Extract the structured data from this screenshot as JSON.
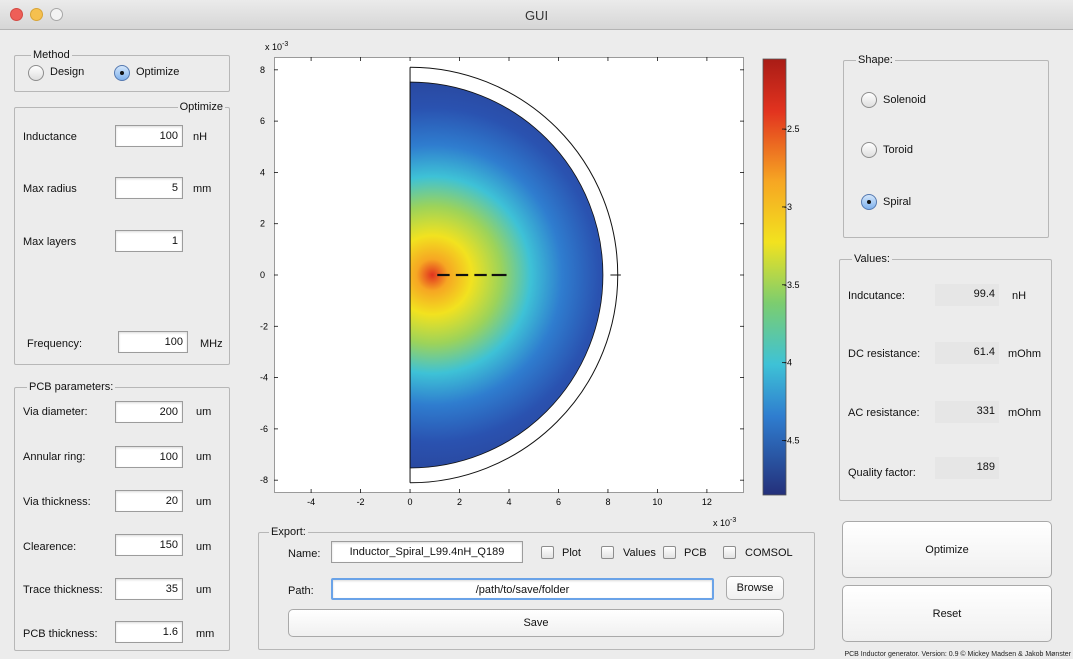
{
  "window": {
    "title": "GUI"
  },
  "method": {
    "title": "Method",
    "design_label": "Design",
    "optimize_label": "Optimize",
    "selected": "Optimize"
  },
  "optimize": {
    "title": "Optimize",
    "inductance": {
      "label": "Inductance",
      "value": "100",
      "unit": "nH"
    },
    "max_radius": {
      "label": "Max radius",
      "value": "5",
      "unit": "mm"
    },
    "max_layers": {
      "label": "Max layers",
      "value": "1"
    },
    "frequency": {
      "label": "Frequency:",
      "value": "100",
      "unit": "MHz"
    }
  },
  "pcb": {
    "title": "PCB parameters:",
    "via_diameter": {
      "label": "Via diameter:",
      "value": "200",
      "unit": "um"
    },
    "annular_ring": {
      "label": "Annular ring:",
      "value": "100",
      "unit": "um"
    },
    "via_thickness": {
      "label": "Via thickness:",
      "value": "20",
      "unit": "um"
    },
    "clearence": {
      "label": "Clearence:",
      "value": "150",
      "unit": "um"
    },
    "trace_thickness": {
      "label": "Trace thickness:",
      "value": "35",
      "unit": "um"
    },
    "pcb_thickness": {
      "label": "PCB thickness:",
      "value": "1.6",
      "unit": "mm"
    }
  },
  "chart_data": {
    "type": "heatmap",
    "title": "",
    "xlabel": "",
    "ylabel": "",
    "x_exponent": "x 10",
    "y_exponent": "x 10",
    "exponent_power": "-3",
    "xlim": [
      -5.5,
      13.5
    ],
    "ylim": [
      -8.5,
      8.5
    ],
    "x_ticks": [
      "-4",
      "-2",
      "0",
      "2",
      "4",
      "6",
      "8",
      "10",
      "12"
    ],
    "x_tick_values": [
      -4,
      -2,
      0,
      2,
      4,
      6,
      8,
      10,
      12
    ],
    "y_ticks": [
      "8",
      "6",
      "4",
      "2",
      "0",
      "-2",
      "-4",
      "-6",
      "-8"
    ],
    "y_tick_values": [
      8,
      6,
      4,
      2,
      0,
      -2,
      -4,
      -6,
      -8
    ],
    "colorbar_ticks": [
      "-2.5",
      "-3",
      "-3.5",
      "-4",
      "-4.5"
    ],
    "colorbar_tick_values": [
      -2.5,
      -3,
      -3.5,
      -4,
      -4.5
    ],
    "colorbar_range": [
      -4.85,
      -2.05
    ],
    "field_radius": 7.8,
    "outer_boundary_radius": 8.4,
    "boundary_marker_x": [
      8.1,
      8.4
    ],
    "spiral_segments_x": [
      [
        1.1,
        1.6
      ],
      [
        1.85,
        2.35
      ],
      [
        2.6,
        3.1
      ],
      [
        3.3,
        3.9
      ]
    ],
    "spiral_y": 0
  },
  "shape": {
    "title": "Shape:",
    "solenoid_label": "Solenoid",
    "toroid_label": "Toroid",
    "spiral_label": "Spiral",
    "selected": "Spiral"
  },
  "values": {
    "title": "Values:",
    "inductance": {
      "label": "Indcutance:",
      "value": "99.4",
      "unit": "nH"
    },
    "dc_resistance": {
      "label": "DC resistance:",
      "value": "61.4",
      "unit": "mOhm"
    },
    "ac_resistance": {
      "label": "AC resistance:",
      "value": "331",
      "unit": "mOhm"
    },
    "quality_factor": {
      "label": "Quality factor:",
      "value": "189"
    }
  },
  "export": {
    "title": "Export:",
    "name_label": "Name:",
    "name_value": "Inductor_Spiral_L99.4nH_Q189",
    "plot_label": "Plot",
    "values_label": "Values",
    "pcb_label": "PCB",
    "comsol_label": "COMSOL",
    "path_label": "Path:",
    "path_value": "/path/to/save/folder",
    "browse_label": "Browse",
    "save_label": "Save"
  },
  "actions": {
    "optimize_label": "Optimize",
    "reset_label": "Reset"
  },
  "footer": {
    "text": "PCB Inductor generator. Version: 0.9 © Mickey Madsen & Jakob Mønster"
  },
  "colors": {
    "window_bg": "#ececec",
    "radio_selected": "#7fb1ec",
    "path_focus": "#6aa3e8"
  }
}
